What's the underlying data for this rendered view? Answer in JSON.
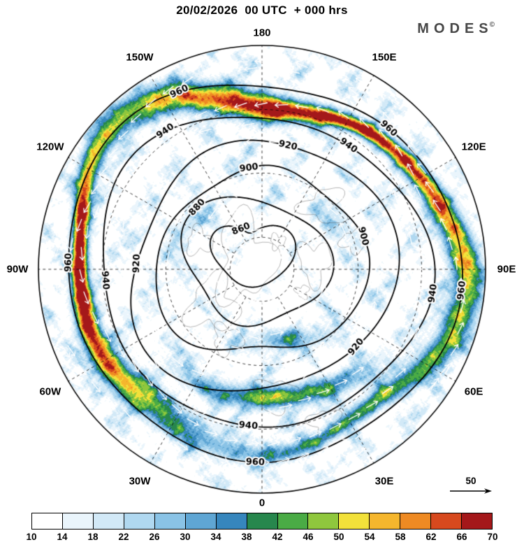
{
  "header": {
    "title": "20/02/2026  00 UTC  + 000 hrs",
    "logo": "MODES",
    "logo_sup": "©"
  },
  "chart_data": {
    "type": "heatmap",
    "projection": "north_polar_stereographic",
    "title": "20/02/2026 00 UTC + 000 hrs",
    "field_description": "Wind speed (shaded), geopotential height contours, wind direction arrows",
    "colorbar": {
      "orientation": "horizontal",
      "ticks": [
        "10",
        "14",
        "18",
        "22",
        "26",
        "30",
        "34",
        "38",
        "42",
        "46",
        "50",
        "54",
        "58",
        "62",
        "66",
        "70"
      ],
      "colors": [
        "#ffffff",
        "#eaf5fc",
        "#d2e9f7",
        "#b0d8f0",
        "#8ac3e6",
        "#5fa6d4",
        "#3686bd",
        "#27874d",
        "#4aab45",
        "#8fc73d",
        "#f2e13a",
        "#f5b62d",
        "#ee8a23",
        "#d7491e",
        "#a4181a"
      ]
    },
    "contours": {
      "levels": [
        "860",
        "880",
        "900",
        "920",
        "940",
        "960"
      ],
      "interval": 20,
      "line_color": "#000000"
    },
    "longitude_labels": [
      {
        "label": "180",
        "deg": 0
      },
      {
        "label": "150E",
        "deg": 30
      },
      {
        "label": "120E",
        "deg": 60
      },
      {
        "label": "90E",
        "deg": 90
      },
      {
        "label": "60E",
        "deg": 120
      },
      {
        "label": "30E",
        "deg": 150
      },
      {
        "label": "0",
        "deg": 180
      },
      {
        "label": "30W",
        "deg": 210
      },
      {
        "label": "60W",
        "deg": 240
      },
      {
        "label": "90W",
        "deg": 270
      },
      {
        "label": "120W",
        "deg": 300
      },
      {
        "label": "150W",
        "deg": 330
      }
    ],
    "reference_arrow": {
      "value": "50"
    },
    "grid": "dashed graticule, 30-degree meridians, latitude circles",
    "arrow_color": "#ffffff"
  }
}
